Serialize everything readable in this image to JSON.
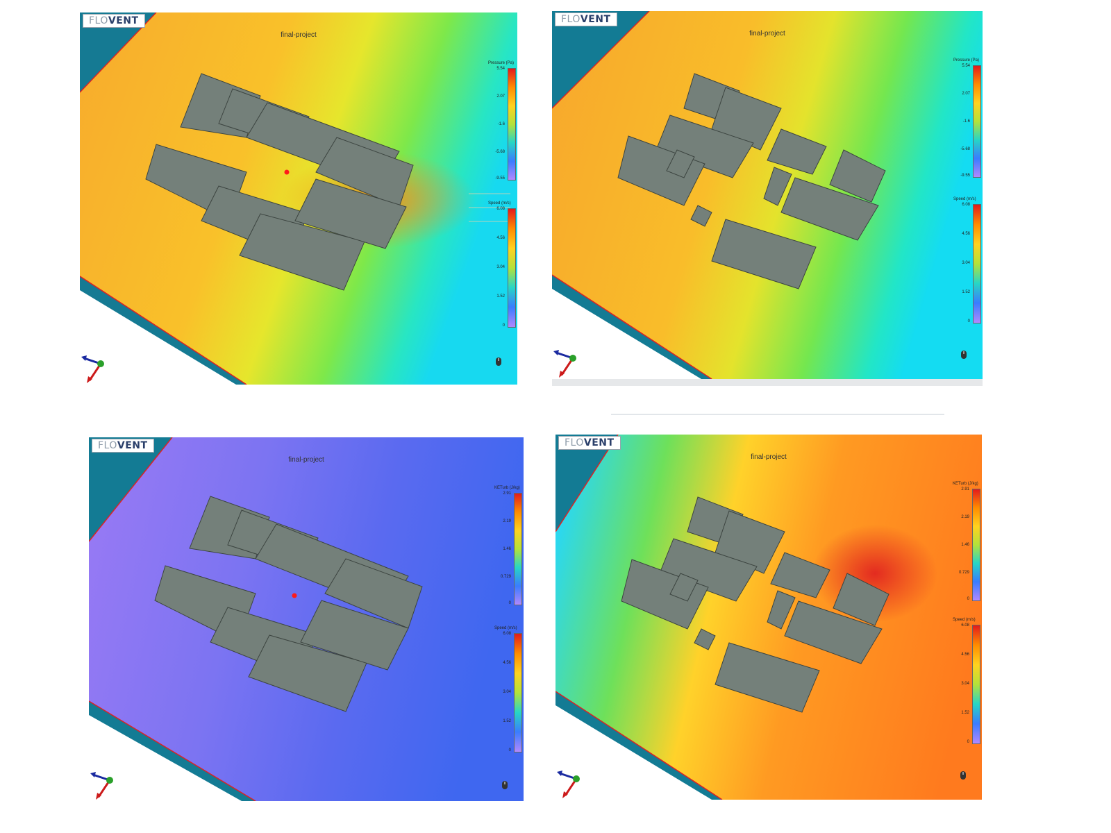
{
  "logo": {
    "flo": "FLO",
    "vent": "VENT"
  },
  "panels": [
    {
      "title": "final-project",
      "legend_top": {
        "title": "Pressure (Pa)",
        "ticks": [
          "5.54",
          "2.07",
          "-1.6",
          "-5.68",
          "-9.55"
        ]
      },
      "legend_bottom": {
        "title": "Speed (m/s)",
        "ticks": [
          "6.08",
          "4.56",
          "3.04",
          "1.52",
          "0"
        ]
      },
      "colors": {
        "base": "#f8b22a",
        "edge": "#00e0ff"
      }
    },
    {
      "title": "final-project",
      "legend_top": {
        "title": "Pressure (Pa)",
        "ticks": [
          "5.54",
          "2.07",
          "-1.6",
          "-5.68",
          "-9.55"
        ]
      },
      "legend_bottom": {
        "title": "Speed (m/s)",
        "ticks": [
          "6.08",
          "4.56",
          "3.04",
          "1.52",
          "0"
        ]
      },
      "colors": {
        "base": "#f8ac28",
        "edge": "#00e6ff"
      }
    },
    {
      "title": "final-project",
      "legend_top": {
        "title": "KETurb (J/kg)",
        "ticks": [
          "2.91",
          "2.19",
          "1.46",
          "0.729",
          "0"
        ]
      },
      "legend_bottom": {
        "title": "Speed (m/s)",
        "ticks": [
          "6.08",
          "4.56",
          "3.04",
          "1.52",
          "0"
        ]
      },
      "colors": {
        "base": "#5b6bf0",
        "edge": "#3d7cff"
      }
    },
    {
      "title": "final-project",
      "legend_top": {
        "title": "KETurb (J/kg)",
        "ticks": [
          "2.91",
          "2.19",
          "1.46",
          "0.729",
          "0"
        ]
      },
      "legend_bottom": {
        "title": "Speed (m/s)",
        "ticks": [
          "6.08",
          "4.56",
          "3.04",
          "1.52",
          "0"
        ]
      },
      "colors": {
        "base": "#ff7a1e",
        "edge": "#00d8ff"
      }
    }
  ]
}
